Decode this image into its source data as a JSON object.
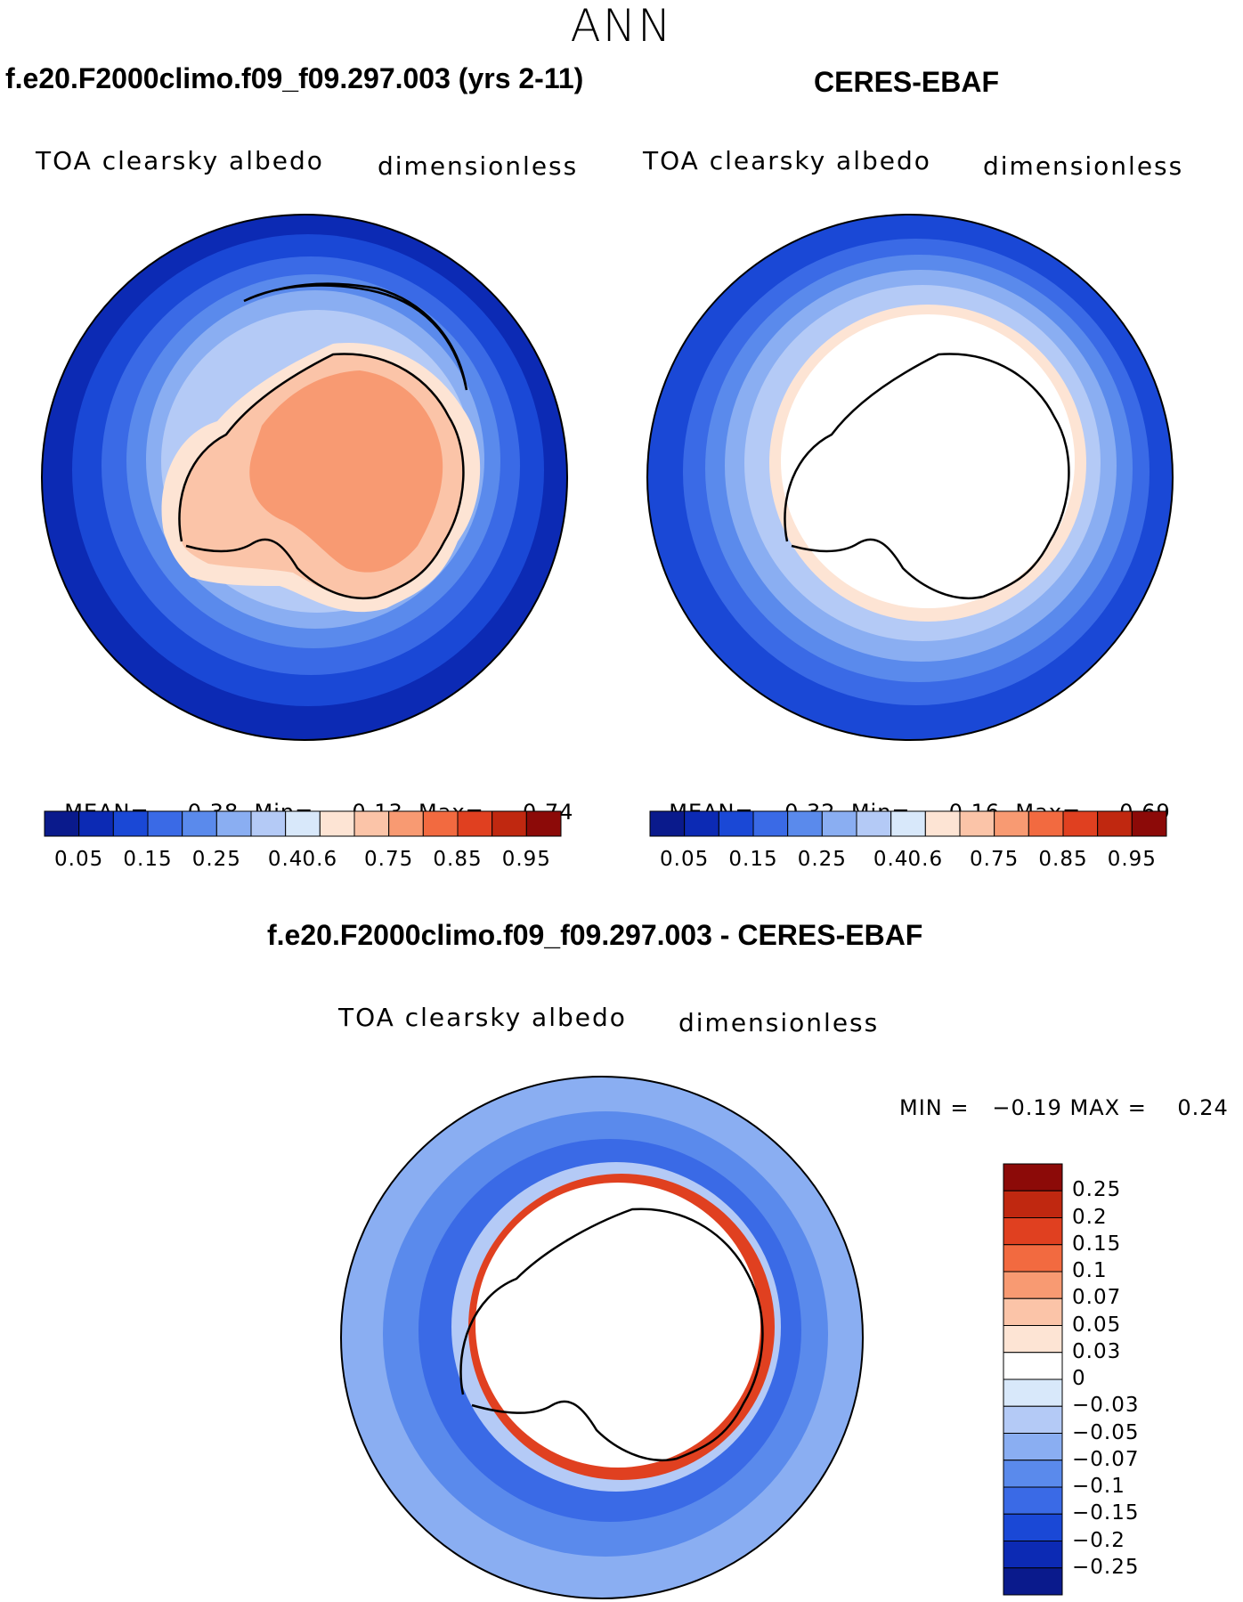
{
  "title": "ANN",
  "panels": [
    {
      "heading": "f.e20.F2000climo.f09_f09.297.003 (yrs 2-11)",
      "variable": "TOA clearsky albedo",
      "units": "dimensionless",
      "stats": {
        "mean_label": "MEAN=",
        "mean": "0.38",
        "min_label": "Min=",
        "min": "0.13",
        "max_label": "Max=",
        "max": "0.74"
      }
    },
    {
      "heading": "CERES-EBAF",
      "variable": "TOA clearsky albedo",
      "units": "dimensionless",
      "stats": {
        "mean_label": "MEAN=",
        "mean": "0.32",
        "min_label": "Min=",
        "min": "0.16",
        "max_label": "Max=",
        "max": "0.69"
      }
    }
  ],
  "colorbar": {
    "ticks": [
      "0.05",
      "0.15",
      "0.25",
      "0.4",
      "0.6",
      "0.75",
      "0.85",
      "0.95"
    ],
    "colors": [
      "#0a1a8c",
      "#0c2ab4",
      "#1a48d6",
      "#3a6ae6",
      "#5a8aec",
      "#8aaef2",
      "#b4caf6",
      "#d8e8fa",
      "#fde4d4",
      "#fbc4a8",
      "#f89a72",
      "#f26a40",
      "#e04020",
      "#c02810",
      "#8c0a08"
    ]
  },
  "diff": {
    "heading": "f.e20.F2000climo.f09_f09.297.003 - CERES-EBAF",
    "variable": "TOA clearsky albedo",
    "units": "dimensionless",
    "minmax": "MIN =   −0.19 MAX =    0.24",
    "colorbar_ticks": [
      "0.25",
      "0.2",
      "0.15",
      "0.1",
      "0.07",
      "0.05",
      "0.03",
      "0",
      "−0.03",
      "−0.05",
      "−0.07",
      "−0.1",
      "−0.15",
      "−0.2",
      "−0.25"
    ],
    "colorbar_colors": [
      "#8c0a08",
      "#c02810",
      "#e04020",
      "#f26a40",
      "#f89a72",
      "#fbc4a8",
      "#fde4d4",
      "#ffffff",
      "#d8e8fa",
      "#b4caf6",
      "#8aaef2",
      "#5a8aec",
      "#3a6ae6",
      "#1a48d6",
      "#0c2ab4",
      "#0a1a8c"
    ]
  },
  "colors": {
    "ocean_deep": "#1a48d6",
    "ocean_mid": "#3a6ae6",
    "ice_light": "#b4caf6",
    "land_pale": "#fbc4a8",
    "land_orange": "#f89a72",
    "diff_red": "#e04020"
  }
}
